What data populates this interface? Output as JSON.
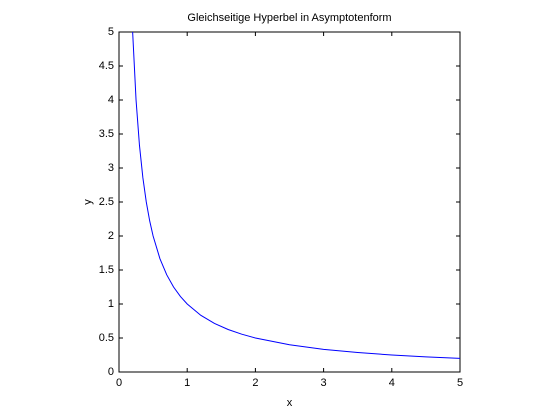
{
  "chart_data": {
    "type": "line",
    "title": "Gleichseitige Hyperbel in Asymptotenform",
    "x_label": "x",
    "y_label": "y",
    "x": [
      0.2,
      0.25,
      0.3,
      0.35,
      0.4,
      0.45,
      0.5,
      0.6,
      0.7,
      0.8,
      0.9,
      1,
      1.2,
      1.4,
      1.6,
      1.8,
      2,
      2.5,
      3,
      3.5,
      4,
      4.5,
      5
    ],
    "series": [
      {
        "color": "#0000ff",
        "values": [
          5,
          4,
          3.333,
          2.857,
          2.5,
          2.222,
          2,
          1.667,
          1.429,
          1.25,
          1.111,
          1,
          0.833,
          0.714,
          0.625,
          0.556,
          0.5,
          0.4,
          0.333,
          0.286,
          0.25,
          0.222,
          0.2
        ]
      }
    ],
    "xlim": [
      0,
      5
    ],
    "xticks": [
      0,
      1,
      2,
      3,
      4,
      5
    ],
    "ylim": [
      0,
      5
    ],
    "yticks": [
      0,
      0.5,
      1,
      1.5,
      2,
      2.5,
      3,
      3.5,
      4,
      4.5,
      5
    ],
    "grid": false
  }
}
